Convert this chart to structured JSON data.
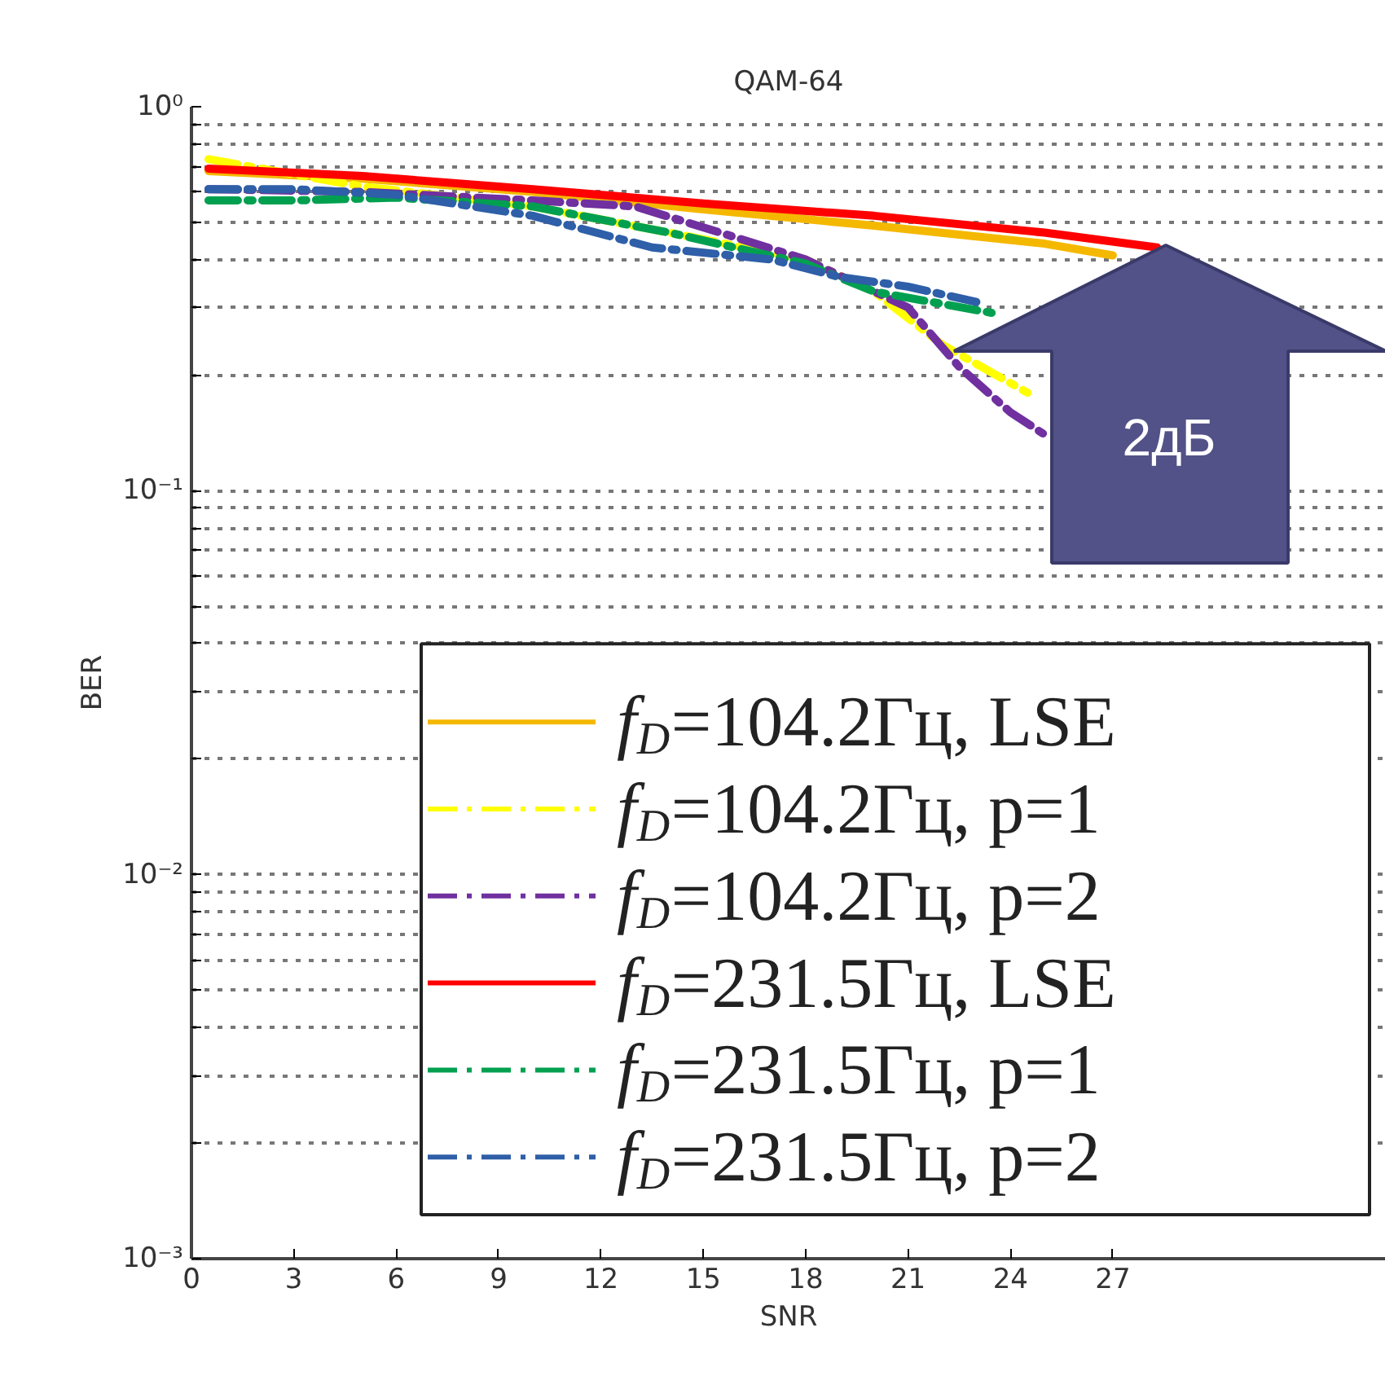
{
  "chart_data": {
    "type": "line",
    "title": "QAM-64",
    "xlabel": "SNR",
    "ylabel": "BER",
    "log": "y",
    "xlim": [
      0,
      35
    ],
    "xticks": [
      0,
      3,
      6,
      9,
      12,
      15,
      18,
      21,
      24,
      27
    ],
    "ylim": [
      0.001,
      1
    ],
    "yticks": [
      {
        "value": 0.001,
        "label": "10⁻³"
      },
      {
        "value": 0.002,
        "label": null
      },
      {
        "value": 0.003,
        "label": null
      },
      {
        "value": 0.004,
        "label": null
      },
      {
        "value": 0.005,
        "label": null
      },
      {
        "value": 0.006,
        "label": null
      },
      {
        "value": 0.007,
        "label": null
      },
      {
        "value": 0.008,
        "label": null
      },
      {
        "value": 0.009,
        "label": null
      },
      {
        "value": 0.01,
        "label": "10⁻²"
      },
      {
        "value": 0.02,
        "label": null
      },
      {
        "value": 0.03,
        "label": null
      },
      {
        "value": 0.04,
        "label": null
      },
      {
        "value": 0.05,
        "label": null
      },
      {
        "value": 0.06,
        "label": null
      },
      {
        "value": 0.07,
        "label": null
      },
      {
        "value": 0.08,
        "label": null
      },
      {
        "value": 0.09,
        "label": null
      },
      {
        "value": 0.1,
        "label": "10⁻¹"
      },
      {
        "value": 0.2,
        "label": null
      },
      {
        "value": 0.3,
        "label": null
      },
      {
        "value": 0.4,
        "label": null
      },
      {
        "value": 0.5,
        "label": null
      },
      {
        "value": 0.6,
        "label": null
      },
      {
        "value": 0.7,
        "label": null
      },
      {
        "value": 0.8,
        "label": null
      },
      {
        "value": 0.9,
        "label": null
      },
      {
        "value": 1,
        "label": "10⁰"
      }
    ],
    "grid": "y",
    "legend": "bottom right",
    "marker": "none",
    "annotations": [
      "2дБ"
    ],
    "series": [
      {
        "name": "f$_{D}$=104.2Гц, LSE",
        "color": "#f5b800",
        "line_style": "solid",
        "x": [
          0.5,
          5,
          10,
          15,
          20,
          25,
          27
        ],
        "values": [
          0.68,
          0.65,
          0.6,
          0.54,
          0.49,
          0.44,
          0.41
        ]
      },
      {
        "name": "f$_{D}$=104.2Гц, p=1",
        "color": "#ffff00",
        "line_style": "dashdot",
        "x": [
          0.5,
          5,
          10,
          14,
          18,
          20,
          22,
          24.5
        ],
        "values": [
          0.73,
          0.62,
          0.55,
          0.47,
          0.4,
          0.33,
          0.24,
          0.18
        ]
      },
      {
        "name": "f$_{D}$=104.2Гц, p=2",
        "color": "#7030a0",
        "line_style": "dashdot",
        "x": [
          0.5,
          5,
          10,
          13,
          15.5,
          18,
          21,
          22.5,
          24,
          25
        ],
        "values": [
          0.61,
          0.6,
          0.57,
          0.55,
          0.47,
          0.4,
          0.3,
          0.21,
          0.16,
          0.14
        ]
      },
      {
        "name": "f$_{D}$=231.5Гц, LSE",
        "color": "#ff0000",
        "line_style": "solid",
        "x": [
          0.5,
          5,
          10,
          15,
          20,
          25,
          28.3
        ],
        "values": [
          0.69,
          0.66,
          0.61,
          0.56,
          0.52,
          0.47,
          0.43
        ]
      },
      {
        "name": "f$_{D}$=231.5Гц, p=1",
        "color": "#00a050",
        "line_style": "dashdot",
        "x": [
          0.5,
          3,
          6,
          10,
          14,
          18,
          20,
          23.5
        ],
        "values": [
          0.57,
          0.57,
          0.58,
          0.55,
          0.47,
          0.39,
          0.33,
          0.29
        ]
      },
      {
        "name": "f$_{D}$=231.5Гц, p=2",
        "color": "#2e5fa8",
        "line_style": "dashdot",
        "x": [
          0.5,
          3,
          6,
          10,
          13.5,
          17,
          19,
          21,
          23
        ],
        "values": [
          0.61,
          0.61,
          0.59,
          0.52,
          0.43,
          0.4,
          0.36,
          0.34,
          0.31
        ]
      }
    ]
  }
}
